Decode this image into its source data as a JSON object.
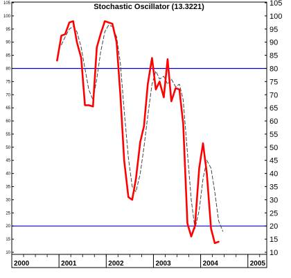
{
  "chart_data": {
    "type": "line",
    "title": "Stochastic Oscillator (13.3221)",
    "xlabel": "",
    "ylabel": "",
    "xlim": [
      2000.0,
      2005.4
    ],
    "ylim": [
      10,
      105
    ],
    "y_ticks": [
      10,
      15,
      20,
      25,
      30,
      35,
      40,
      45,
      50,
      55,
      60,
      65,
      70,
      75,
      80,
      85,
      90,
      95,
      100,
      105
    ],
    "x_ticks": [
      {
        "value": 2000,
        "label": "2000"
      },
      {
        "value": 2001,
        "label": "2001"
      },
      {
        "value": 2002,
        "label": "2002"
      },
      {
        "value": 2003,
        "label": "2003"
      },
      {
        "value": 2004,
        "label": "2004"
      },
      {
        "value": 2005,
        "label": "2005"
      }
    ],
    "reference_lines": [
      80,
      20
    ],
    "grid": false,
    "series": [
      {
        "style": "solid",
        "color": "#ff0000",
        "x": [
          2000.96,
          2001.05,
          2001.13,
          2001.22,
          2001.3,
          2001.38,
          2001.47,
          2001.55,
          2001.63,
          2001.72,
          2001.8,
          2001.88,
          2001.97,
          2002.05,
          2002.13,
          2002.22,
          2002.3,
          2002.38,
          2002.47,
          2002.55,
          2002.63,
          2002.72,
          2002.8,
          2002.88,
          2002.97,
          2003.05,
          2003.13,
          2003.22,
          2003.3,
          2003.38,
          2003.47,
          2003.55,
          2003.63,
          2003.72,
          2003.8,
          2003.88,
          2003.97,
          2004.05,
          2004.13,
          2004.22,
          2004.3,
          2004.38,
          2004.47,
          2004.55
        ],
        "values": [
          83,
          92.5,
          93,
          97.5,
          98,
          90,
          84,
          66,
          66,
          65.5,
          88,
          93,
          98,
          97.5,
          97,
          90,
          70,
          45,
          31,
          30,
          38,
          52,
          58,
          74,
          84,
          72,
          75,
          69,
          83.5,
          67.5,
          72.5,
          72,
          59,
          21,
          16,
          20,
          42,
          51.5,
          40,
          19,
          13.5,
          14,
          null,
          null
        ]
      },
      {
        "style": "dashed",
        "color": "#444444",
        "x": [
          2001.05,
          2001.13,
          2001.22,
          2001.3,
          2001.38,
          2001.47,
          2001.55,
          2001.63,
          2001.72,
          2001.8,
          2001.88,
          2001.97,
          2002.05,
          2002.13,
          2002.22,
          2002.3,
          2002.38,
          2002.47,
          2002.55,
          2002.63,
          2002.72,
          2002.8,
          2002.88,
          2002.97,
          2003.05,
          2003.13,
          2003.22,
          2003.3,
          2003.38,
          2003.47,
          2003.55,
          2003.63,
          2003.72,
          2003.8,
          2003.88,
          2003.97,
          2004.05,
          2004.13,
          2004.22,
          2004.3,
          2004.38,
          2004.47
        ],
        "values": [
          89,
          92,
          95,
          96,
          94,
          88,
          80,
          72,
          68,
          76,
          86,
          94,
          96.5,
          96,
          92,
          82,
          64,
          46,
          35,
          33,
          40,
          50,
          62,
          74,
          79,
          76,
          77,
          74,
          76,
          73,
          74,
          68,
          48,
          30,
          19,
          26,
          38,
          45,
          42,
          33,
          22,
          18
        ]
      }
    ]
  }
}
